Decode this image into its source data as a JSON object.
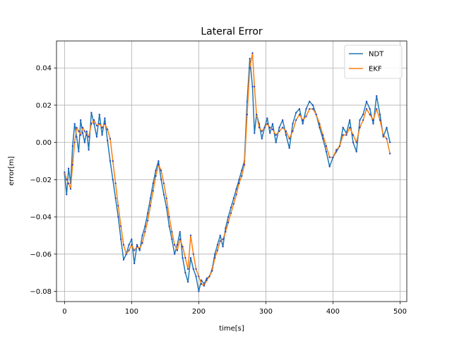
{
  "chart_data": {
    "type": "line",
    "title": "Lateral Error",
    "xlabel": "time[s]",
    "ylabel": "error[m]",
    "xlim": [
      -12,
      510
    ],
    "ylim": [
      -0.0855,
      0.0545
    ],
    "xticks": [
      0,
      100,
      200,
      300,
      400,
      500
    ],
    "xtick_labels": [
      "0",
      "100",
      "200",
      "300",
      "400",
      "500"
    ],
    "yticks": [
      -0.08,
      -0.06,
      -0.04,
      -0.02,
      0.0,
      0.02,
      0.04
    ],
    "ytick_labels": [
      "−0.08",
      "−0.06",
      "−0.04",
      "−0.02",
      "0.00",
      "0.02",
      "0.04"
    ],
    "grid": true,
    "legend_position": "top-right",
    "series": [
      {
        "name": "NDT",
        "color": "#1f77b4",
        "x": [
          0,
          3,
          6,
          9,
          12,
          15,
          18,
          21,
          24,
          27,
          30,
          33,
          36,
          40,
          44,
          48,
          52,
          56,
          60,
          64,
          68,
          72,
          76,
          80,
          84,
          88,
          92,
          96,
          100,
          104,
          108,
          112,
          116,
          120,
          124,
          128,
          132,
          136,
          140,
          144,
          148,
          152,
          156,
          160,
          164,
          168,
          172,
          176,
          180,
          184,
          188,
          192,
          196,
          200,
          204,
          208,
          212,
          216,
          220,
          224,
          228,
          232,
          236,
          240,
          244,
          248,
          252,
          256,
          260,
          264,
          268,
          272,
          276,
          280,
          283,
          286,
          290,
          294,
          298,
          302,
          306,
          310,
          315,
          320,
          325,
          330,
          335,
          340,
          345,
          350,
          355,
          360,
          365,
          370,
          375,
          380,
          385,
          390,
          395,
          400,
          405,
          410,
          415,
          420,
          425,
          430,
          435,
          440,
          445,
          450,
          455,
          460,
          465,
          470,
          475,
          480,
          485
        ],
        "y": [
          -0.017,
          -0.028,
          -0.014,
          -0.022,
          -0.002,
          0.01,
          0.003,
          -0.005,
          0.012,
          0.005,
          0.0,
          0.006,
          -0.004,
          0.016,
          0.01,
          0.003,
          0.015,
          0.004,
          0.013,
          0.001,
          -0.01,
          -0.02,
          -0.03,
          -0.04,
          -0.052,
          -0.063,
          -0.06,
          -0.055,
          -0.052,
          -0.065,
          -0.055,
          -0.058,
          -0.05,
          -0.045,
          -0.038,
          -0.03,
          -0.022,
          -0.015,
          -0.01,
          -0.02,
          -0.028,
          -0.035,
          -0.045,
          -0.052,
          -0.06,
          -0.055,
          -0.048,
          -0.062,
          -0.07,
          -0.075,
          -0.062,
          -0.068,
          -0.072,
          -0.08,
          -0.074,
          -0.076,
          -0.073,
          -0.072,
          -0.068,
          -0.06,
          -0.055,
          -0.05,
          -0.056,
          -0.046,
          -0.04,
          -0.035,
          -0.03,
          -0.025,
          -0.02,
          -0.015,
          -0.01,
          0.022,
          0.045,
          0.03,
          0.005,
          0.015,
          0.01,
          0.002,
          0.008,
          0.013,
          0.005,
          0.01,
          0.0,
          0.008,
          0.012,
          0.004,
          -0.003,
          0.01,
          0.016,
          0.018,
          0.01,
          0.018,
          0.022,
          0.02,
          0.015,
          0.008,
          0.002,
          -0.005,
          -0.013,
          -0.008,
          -0.005,
          -0.002,
          0.008,
          0.005,
          0.012,
          0.0,
          -0.005,
          0.012,
          0.015,
          0.022,
          0.018,
          0.01,
          0.025,
          0.015,
          0.003,
          0.008,
          0.0
        ]
      },
      {
        "name": "EKF",
        "color": "#ff7f0e",
        "x": [
          0,
          3,
          6,
          9,
          12,
          15,
          18,
          21,
          24,
          27,
          30,
          33,
          36,
          40,
          44,
          48,
          52,
          56,
          60,
          64,
          68,
          72,
          76,
          80,
          84,
          88,
          92,
          96,
          100,
          104,
          108,
          112,
          116,
          120,
          124,
          128,
          132,
          136,
          140,
          144,
          148,
          152,
          156,
          160,
          164,
          168,
          172,
          176,
          180,
          184,
          188,
          192,
          196,
          200,
          204,
          208,
          212,
          216,
          220,
          224,
          228,
          232,
          236,
          240,
          244,
          248,
          252,
          256,
          260,
          264,
          268,
          272,
          276,
          280,
          283,
          286,
          290,
          294,
          298,
          302,
          306,
          310,
          315,
          320,
          325,
          330,
          335,
          340,
          345,
          350,
          355,
          360,
          365,
          370,
          375,
          380,
          385,
          390,
          395,
          400,
          405,
          410,
          415,
          420,
          425,
          430,
          435,
          440,
          445,
          450,
          455,
          460,
          465,
          470,
          475,
          480,
          485
        ],
        "y": [
          -0.016,
          -0.02,
          -0.022,
          -0.025,
          -0.012,
          0.0,
          0.008,
          0.006,
          0.004,
          0.008,
          0.006,
          0.004,
          0.003,
          0.01,
          0.012,
          0.009,
          0.01,
          0.008,
          0.01,
          0.007,
          0.002,
          -0.01,
          -0.022,
          -0.034,
          -0.045,
          -0.055,
          -0.06,
          -0.058,
          -0.055,
          -0.058,
          -0.056,
          -0.057,
          -0.054,
          -0.048,
          -0.042,
          -0.034,
          -0.026,
          -0.018,
          -0.012,
          -0.015,
          -0.022,
          -0.03,
          -0.04,
          -0.048,
          -0.055,
          -0.058,
          -0.052,
          -0.056,
          -0.062,
          -0.068,
          -0.05,
          -0.06,
          -0.068,
          -0.072,
          -0.076,
          -0.077,
          -0.074,
          -0.072,
          -0.069,
          -0.062,
          -0.058,
          -0.053,
          -0.052,
          -0.048,
          -0.043,
          -0.038,
          -0.033,
          -0.028,
          -0.022,
          -0.018,
          -0.012,
          0.015,
          0.04,
          0.048,
          0.03,
          0.015,
          0.008,
          0.006,
          0.008,
          0.01,
          0.008,
          0.007,
          0.004,
          0.006,
          0.008,
          0.006,
          0.002,
          0.006,
          0.012,
          0.015,
          0.012,
          0.014,
          0.018,
          0.018,
          0.015,
          0.01,
          0.004,
          -0.002,
          -0.008,
          -0.008,
          -0.004,
          -0.002,
          0.004,
          0.004,
          0.008,
          0.004,
          0.0,
          0.008,
          0.012,
          0.018,
          0.015,
          0.012,
          0.018,
          0.012,
          0.004,
          0.002,
          -0.006
        ]
      }
    ]
  }
}
